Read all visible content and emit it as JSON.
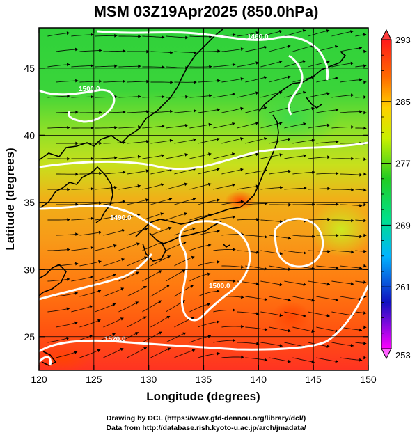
{
  "title": "MSM 03Z19Apr2025 (850.0hPa)",
  "x_axis": {
    "label": "Longitude (degrees)",
    "range": [
      120,
      150
    ],
    "ticks": [
      "120",
      "125",
      "130",
      "135",
      "140",
      "145",
      "150"
    ]
  },
  "y_axis": {
    "label": "Latitude  (degrees)",
    "range": [
      22.5,
      48
    ],
    "ticks": [
      "25",
      "30",
      "35",
      "40",
      "45"
    ]
  },
  "colorbar": {
    "range": [
      253,
      293
    ],
    "labels": [
      "293",
      "285",
      "277",
      "269",
      "261",
      "253"
    ],
    "colors": [
      "#ff00ff",
      "#1010c0",
      "#00b4ff",
      "#00e08a",
      "#22cc22",
      "#c8f000",
      "#ffd000",
      "#ff6a00",
      "#ff1a1a"
    ]
  },
  "contours": {
    "color": "#ffffff",
    "labels": [
      "1460.0",
      "1500.0",
      "1490.0",
      "1500.0",
      "1520.0"
    ]
  },
  "credits": {
    "line1": "Drawing by DCL (https://www.gfd-dennou.org/library/dcl/)",
    "line2": "Data from http://database.rish.kyoto-u.ac.jp/arch/jmadata/"
  }
}
